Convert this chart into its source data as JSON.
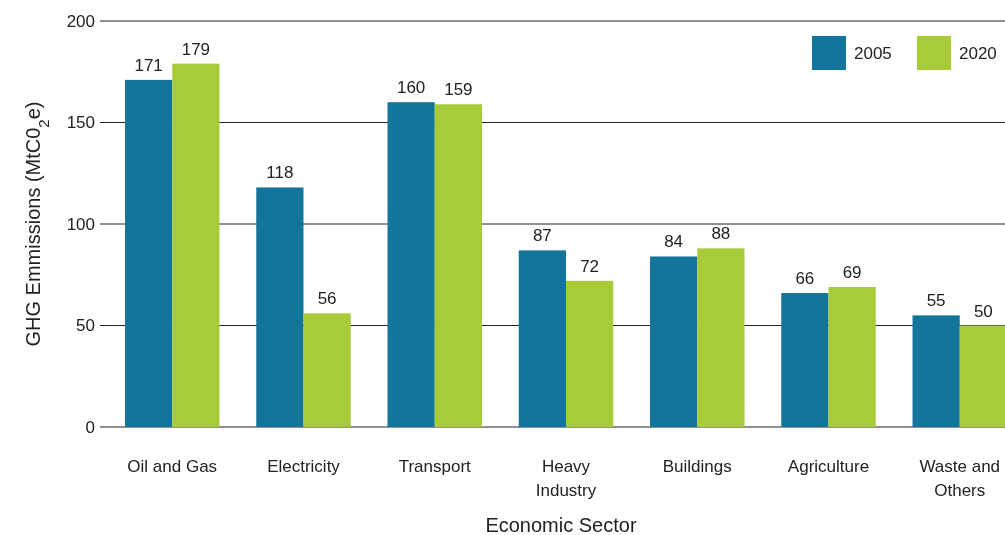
{
  "chart_data": {
    "type": "bar",
    "xlabel": "Economic Sector",
    "ylabel": "GHG Emmissions (MtC0$_{2}$e)",
    "categories": [
      "Oil and Gas",
      "Electricity",
      "Transport",
      "Heavy Industry",
      "Buildings",
      "Agriculture",
      "Waste and Others"
    ],
    "series": [
      {
        "name": "2005",
        "color": "#14759a",
        "values": [
          171,
          118,
          160,
          87,
          84,
          66,
          55
        ]
      },
      {
        "name": "2020",
        "color": "#a8cb3a",
        "values": [
          179,
          56,
          159,
          72,
          88,
          69,
          50
        ]
      }
    ],
    "ylim": [
      0,
      200
    ],
    "yticks": [
      0,
      50,
      100,
      150,
      200
    ],
    "grid": "y",
    "legend": "top right",
    "data_labels": true
  }
}
